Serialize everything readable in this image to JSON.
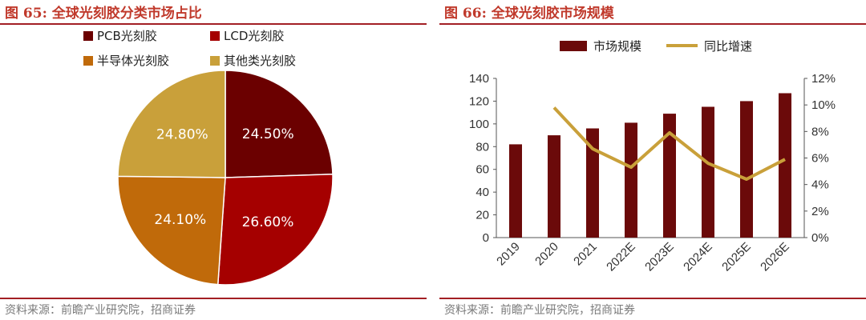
{
  "colors": {
    "title": "#c0392b",
    "rule": "#a31f24",
    "pcb": "#6b0000",
    "lcd": "#a50000",
    "semiconductor": "#c06a0a",
    "other": "#c9a03a",
    "bar": "#6b0a0a",
    "line": "#c9a03a",
    "source": "#7a7a7a"
  },
  "left": {
    "title": "图 65:  全球光刻胶分类市场占比",
    "source": "资料来源：前瞻产业研究院，招商证券"
  },
  "right": {
    "title": "图 66:  全球光刻胶市场规模",
    "source": "资料来源：前瞻产业研究院，招商证券"
  },
  "chart_data": [
    {
      "type": "pie",
      "title": "",
      "legend_position": "top",
      "slices": [
        {
          "label": "PCB光刻胶",
          "value": 24.5,
          "display": "24.50%",
          "color": "#6b0000"
        },
        {
          "label": "LCD光刻胶",
          "value": 26.6,
          "display": "26.60%",
          "color": "#a50000"
        },
        {
          "label": "半导体光刻胶",
          "value": 24.1,
          "display": "24.10%",
          "color": "#c06a0a"
        },
        {
          "label": "其他类光刻胶",
          "value": 24.8,
          "display": "24.80%",
          "color": "#c9a03a"
        }
      ]
    },
    {
      "type": "bar",
      "title": "",
      "legend_position": "top",
      "categories": [
        "2019",
        "2020",
        "2021",
        "2022E",
        "2023E",
        "2024E",
        "2025E",
        "2026E"
      ],
      "series": [
        {
          "name": "市场规模",
          "type": "bar",
          "axis": "left",
          "values": [
            82,
            90,
            96,
            101,
            109,
            115,
            120,
            127
          ],
          "color": "#6b0a0a"
        },
        {
          "name": "同比增速",
          "type": "line",
          "axis": "right",
          "values": [
            null,
            9.8,
            6.7,
            5.3,
            7.9,
            5.6,
            4.4,
            5.9
          ],
          "color": "#c9a03a"
        }
      ],
      "ylim_left": [
        0,
        140
      ],
      "yticks_left": [
        "0",
        "20",
        "40",
        "60",
        "80",
        "100",
        "120",
        "140"
      ],
      "ylim_right": [
        0,
        12
      ],
      "yticks_right": [
        "0%",
        "2%",
        "4%",
        "6%",
        "8%",
        "10%",
        "12%"
      ],
      "grid": false
    }
  ]
}
